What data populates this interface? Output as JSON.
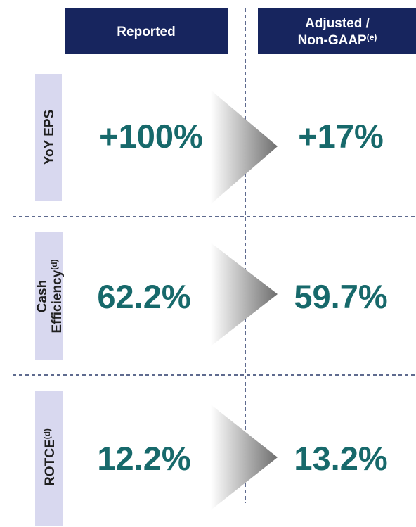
{
  "columns": [
    {
      "label": "Reported"
    },
    {
      "label": "Adjusted /",
      "label2": "Non-GAAP",
      "note": "(e)"
    }
  ],
  "rows": [
    {
      "label": "YoY EPS",
      "reported": "+100%",
      "adjusted": "+17%"
    },
    {
      "label": "Cash",
      "label2": "Efficiency",
      "note": "(d)",
      "reported": "62.2%",
      "adjusted": "59.7%"
    },
    {
      "label": "ROTCE",
      "note": "(d)",
      "reported": "12.2%",
      "adjusted": "13.2%"
    }
  ]
}
